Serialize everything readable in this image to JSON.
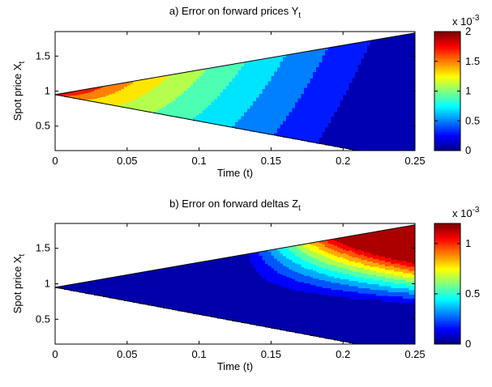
{
  "figure": {
    "panels": [
      {
        "title_main": "a) Error on forward prices Y",
        "title_sub": "t",
        "xlabel": "Time (t)",
        "ylabel_main": "Spot price X",
        "ylabel_sub": "t",
        "colorbar_multiplier": "x 10",
        "colorbar_exponent": "-3"
      },
      {
        "title_main": "b) Error on forward deltas Z",
        "title_sub": "t",
        "xlabel": "Time (t)",
        "ylabel_main": "Spot price X",
        "ylabel_sub": "t",
        "colorbar_multiplier": "x 10",
        "colorbar_exponent": "-3"
      }
    ]
  },
  "chart_data": [
    {
      "type": "heatmap",
      "subtype": "filled-contour",
      "title": "a) Error on forward prices Y_t",
      "xlabel": "Time (t)",
      "ylabel": "Spot price X_t",
      "xlim": [
        0,
        0.25
      ],
      "ylim": [
        0.15,
        1.85
      ],
      "xticks": [
        0,
        0.05,
        0.1,
        0.15,
        0.2,
        0.25
      ],
      "xtick_labels": [
        "0",
        "0.05",
        "0.1",
        "0.15",
        "0.2",
        "0.25"
      ],
      "yticks": [
        0.5,
        1,
        1.5
      ],
      "ytick_labels": [
        "0.5",
        "1",
        "1.5"
      ],
      "domain": {
        "apex": [
          0,
          0.95
        ],
        "upper_edge_end": [
          0.25,
          1.83
        ],
        "lower_edge_end": [
          0.25,
          0.0
        ]
      },
      "colormap": "jet",
      "colorbar": {
        "range": [
          0,
          0.002
        ],
        "ticks": [
          0,
          0.5,
          1,
          1.5,
          2
        ],
        "tick_labels": [
          "0",
          "0.5",
          "1",
          "1.5",
          "2"
        ],
        "scale_label": "x 10^-3"
      },
      "contour_levels": [
        0.0002,
        0.0004,
        0.0006,
        0.0008,
        0.001,
        0.0012,
        0.0014,
        0.0016,
        0.0018
      ],
      "grid": false
    },
    {
      "type": "heatmap",
      "subtype": "filled-contour",
      "title": "b) Error on forward deltas Z_t",
      "xlabel": "Time (t)",
      "ylabel": "Spot price X_t",
      "xlim": [
        0,
        0.25
      ],
      "ylim": [
        0.15,
        1.85
      ],
      "xticks": [
        0,
        0.05,
        0.1,
        0.15,
        0.2,
        0.25
      ],
      "xtick_labels": [
        "0",
        "0.05",
        "0.1",
        "0.15",
        "0.2",
        "0.25"
      ],
      "yticks": [
        0.5,
        1,
        1.5
      ],
      "ytick_labels": [
        "0.5",
        "1",
        "1.5"
      ],
      "domain": {
        "apex": [
          0,
          0.95
        ],
        "upper_edge_end": [
          0.25,
          1.83
        ],
        "lower_edge_end": [
          0.25,
          0.0
        ]
      },
      "colormap": "jet",
      "colorbar": {
        "range": [
          0,
          0.0012
        ],
        "ticks": [
          0,
          0.5,
          1
        ],
        "tick_labels": [
          "0",
          "0.5",
          "1"
        ],
        "scale_label": "x 10^-3"
      },
      "contour_levels": [
        0.0001,
        0.0002,
        0.0003,
        0.0004,
        0.0005,
        0.0006,
        0.0007,
        0.0008,
        0.0009,
        0.001,
        0.0011
      ],
      "grid": false
    }
  ]
}
